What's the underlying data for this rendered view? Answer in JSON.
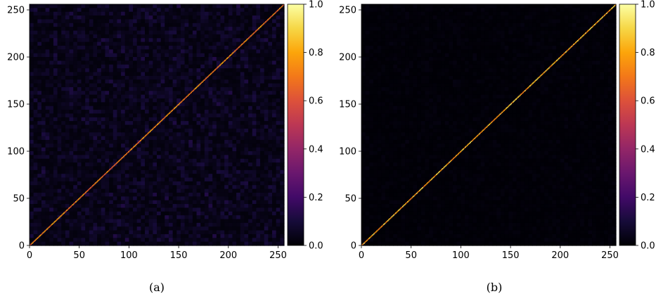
{
  "chart_data": [
    {
      "type": "heatmap",
      "caption": "(a)",
      "title": "",
      "xlabel": "",
      "ylabel": "",
      "size": 256,
      "xlim": [
        0,
        256
      ],
      "ylim": [
        0,
        256
      ],
      "x_ticks": [
        0,
        50,
        100,
        150,
        200,
        250
      ],
      "y_ticks": [
        0,
        50,
        100,
        150,
        200,
        250
      ],
      "colorscale": "inferno",
      "color_range": [
        0.0,
        1.0
      ],
      "colorbar_ticks": [
        "0.0",
        "0.2",
        "0.4",
        "0.6",
        "0.8",
        "1.0"
      ],
      "diagonal_value": 0.75,
      "off_diagonal_mean": 0.05,
      "grid": false
    },
    {
      "type": "heatmap",
      "caption": "(b)",
      "title": "",
      "xlabel": "",
      "ylabel": "",
      "size": 256,
      "xlim": [
        0,
        256
      ],
      "ylim": [
        0,
        256
      ],
      "x_ticks": [
        0,
        50,
        100,
        150,
        200,
        250
      ],
      "y_ticks": [
        0,
        50,
        100,
        150,
        200,
        250
      ],
      "colorscale": "inferno",
      "color_range": [
        0.0,
        1.0
      ],
      "colorbar_ticks": [
        "0.0",
        "0.2",
        "0.4",
        "0.6",
        "0.8",
        "1.0"
      ],
      "diagonal_value": 0.85,
      "off_diagonal_mean": 0.01,
      "grid": false
    }
  ]
}
